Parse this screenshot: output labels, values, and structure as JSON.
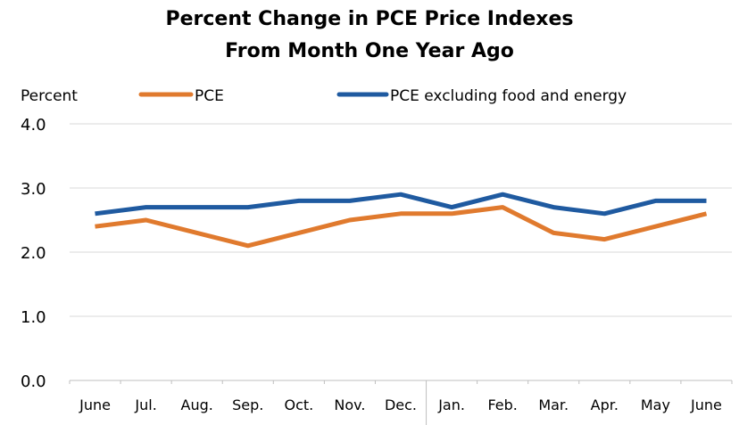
{
  "chart_data": {
    "type": "line",
    "title": [
      "Percent Change in PCE Price Indexes",
      "From Month One Year Ago"
    ],
    "ylabel": "Percent",
    "xlabel": "",
    "categories": [
      "June",
      "Jul.",
      "Aug.",
      "Sep.",
      "Oct.",
      "Nov.",
      "Dec.",
      "Jan.",
      "Feb.",
      "Mar.",
      "Apr.",
      "May",
      "June"
    ],
    "ylim": [
      0,
      4
    ],
    "yticks": [
      0,
      1,
      2,
      3,
      4
    ],
    "ytick_labels": [
      "0.0",
      "1.0",
      "2.0",
      "3.0",
      "4.0"
    ],
    "grid": true,
    "legend_position": "top",
    "series": [
      {
        "name": "PCE",
        "color": "#E07A2E",
        "values": [
          2.4,
          2.5,
          2.3,
          2.1,
          2.3,
          2.5,
          2.6,
          2.6,
          2.7,
          2.3,
          2.2,
          2.4,
          2.6
        ]
      },
      {
        "name": "PCE excluding food and energy",
        "color": "#1F5AA0",
        "values": [
          2.6,
          2.7,
          2.7,
          2.7,
          2.8,
          2.8,
          2.9,
          2.7,
          2.9,
          2.7,
          2.6,
          2.8,
          2.8
        ]
      }
    ]
  }
}
